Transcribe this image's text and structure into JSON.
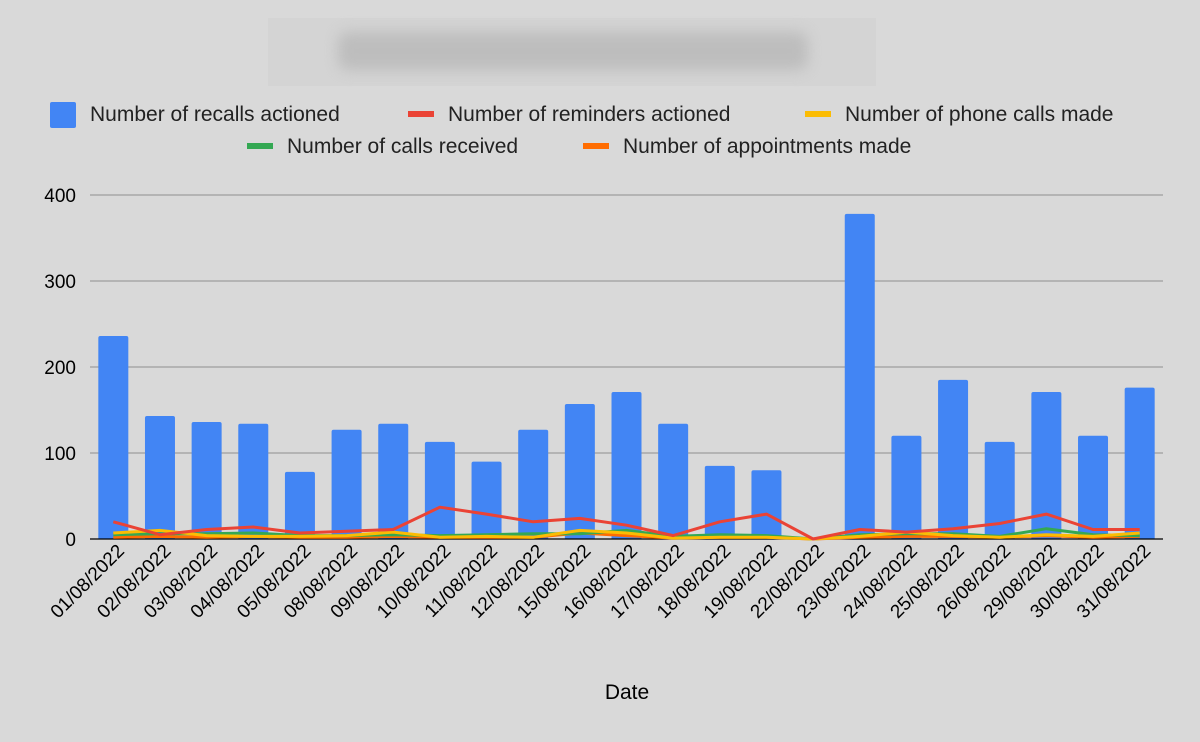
{
  "chart_data": {
    "type": "bar",
    "title": "",
    "xlabel": "Date",
    "ylabel": "",
    "ylim": [
      0,
      400
    ],
    "yticks": [
      "0",
      "100",
      "200",
      "300",
      "400"
    ],
    "grid": true,
    "legend_position": "top",
    "categories": [
      "01/08/2022",
      "02/08/2022",
      "03/08/2022",
      "04/08/2022",
      "05/08/2022",
      "08/08/2022",
      "09/08/2022",
      "10/08/2022",
      "11/08/2022",
      "12/08/2022",
      "15/08/2022",
      "16/08/2022",
      "17/08/2022",
      "18/08/2022",
      "19/08/2022",
      "22/08/2022",
      "23/08/2022",
      "24/08/2022",
      "25/08/2022",
      "26/08/2022",
      "29/08/2022",
      "30/08/2022",
      "31/08/2022"
    ],
    "series": [
      {
        "name": "Number of recalls actioned",
        "type": "bar",
        "color": "#4285f4",
        "values": [
          236,
          143,
          136,
          134,
          78,
          127,
          134,
          113,
          90,
          127,
          157,
          171,
          134,
          85,
          80,
          0,
          378,
          120,
          185,
          113,
          171,
          120,
          176
        ]
      },
      {
        "name": "Number of reminders actioned",
        "type": "line",
        "color": "#ea4335",
        "values": [
          20,
          5,
          11,
          14,
          7,
          9,
          11,
          37,
          29,
          20,
          24,
          16,
          4,
          20,
          29,
          0,
          11,
          8,
          12,
          18,
          29,
          11,
          11
        ]
      },
      {
        "name": "Number of phone calls made",
        "type": "line",
        "color": "#fbbc04",
        "values": [
          7,
          10,
          4,
          3,
          3,
          4,
          8,
          2,
          3,
          2,
          10,
          7,
          1,
          2,
          2,
          0,
          3,
          8,
          4,
          2,
          5,
          3,
          7
        ]
      },
      {
        "name": "Number of calls received",
        "type": "line",
        "color": "#34a853",
        "values": [
          5,
          6,
          6,
          7,
          4,
          4,
          5,
          4,
          5,
          6,
          6,
          10,
          3,
          5,
          4,
          0,
          5,
          6,
          6,
          3,
          12,
          5,
          4
        ]
      },
      {
        "name": "Number of appointments made",
        "type": "line",
        "color": "#ff6d01",
        "values": [
          2,
          3,
          2,
          3,
          2,
          2,
          3,
          2,
          2,
          2,
          7,
          4,
          1,
          2,
          2,
          0,
          2,
          3,
          3,
          2,
          4,
          2,
          3
        ]
      }
    ]
  }
}
